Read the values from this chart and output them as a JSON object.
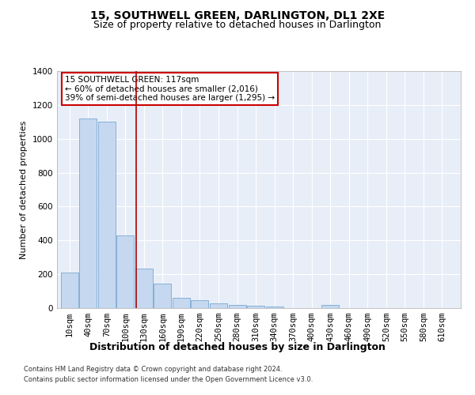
{
  "title": "15, SOUTHWELL GREEN, DARLINGTON, DL1 2XE",
  "subtitle": "Size of property relative to detached houses in Darlington",
  "xlabel": "Distribution of detached houses by size in Darlington",
  "ylabel": "Number of detached properties",
  "footer_line1": "Contains HM Land Registry data © Crown copyright and database right 2024.",
  "footer_line2": "Contains public sector information licensed under the Open Government Licence v3.0.",
  "annotation_line1": "15 SOUTHWELL GREEN: 117sqm",
  "annotation_line2": "← 60% of detached houses are smaller (2,016)",
  "annotation_line3": "39% of semi-detached houses are larger (1,295) →",
  "property_size": 117,
  "bar_color": "#c5d8f0",
  "bar_edge_color": "#7aa8d0",
  "vline_color": "#aa0000",
  "bg_color": "#e8eef8",
  "grid_color": "#ffffff",
  "categories": [
    10,
    40,
    70,
    100,
    130,
    160,
    190,
    220,
    250,
    280,
    310,
    340,
    370,
    400,
    430,
    460,
    490,
    520,
    550,
    580,
    610
  ],
  "values": [
    210,
    1120,
    1100,
    430,
    235,
    145,
    60,
    45,
    30,
    20,
    15,
    10,
    0,
    0,
    20,
    0,
    0,
    0,
    0,
    0,
    0
  ],
  "ylim": [
    0,
    1400
  ],
  "yticks": [
    0,
    200,
    400,
    600,
    800,
    1000,
    1200,
    1400
  ],
  "xtick_labels": [
    "10sqm",
    "40sqm",
    "70sqm",
    "100sqm",
    "130sqm",
    "160sqm",
    "190sqm",
    "220sqm",
    "250sqm",
    "280sqm",
    "310sqm",
    "340sqm",
    "370sqm",
    "400sqm",
    "430sqm",
    "460sqm",
    "490sqm",
    "520sqm",
    "550sqm",
    "580sqm",
    "610sqm"
  ],
  "title_fontsize": 10,
  "subtitle_fontsize": 9,
  "xlabel_fontsize": 9,
  "ylabel_fontsize": 8,
  "tick_fontsize": 7.5,
  "annotation_fontsize": 7.5,
  "footer_fontsize": 6
}
